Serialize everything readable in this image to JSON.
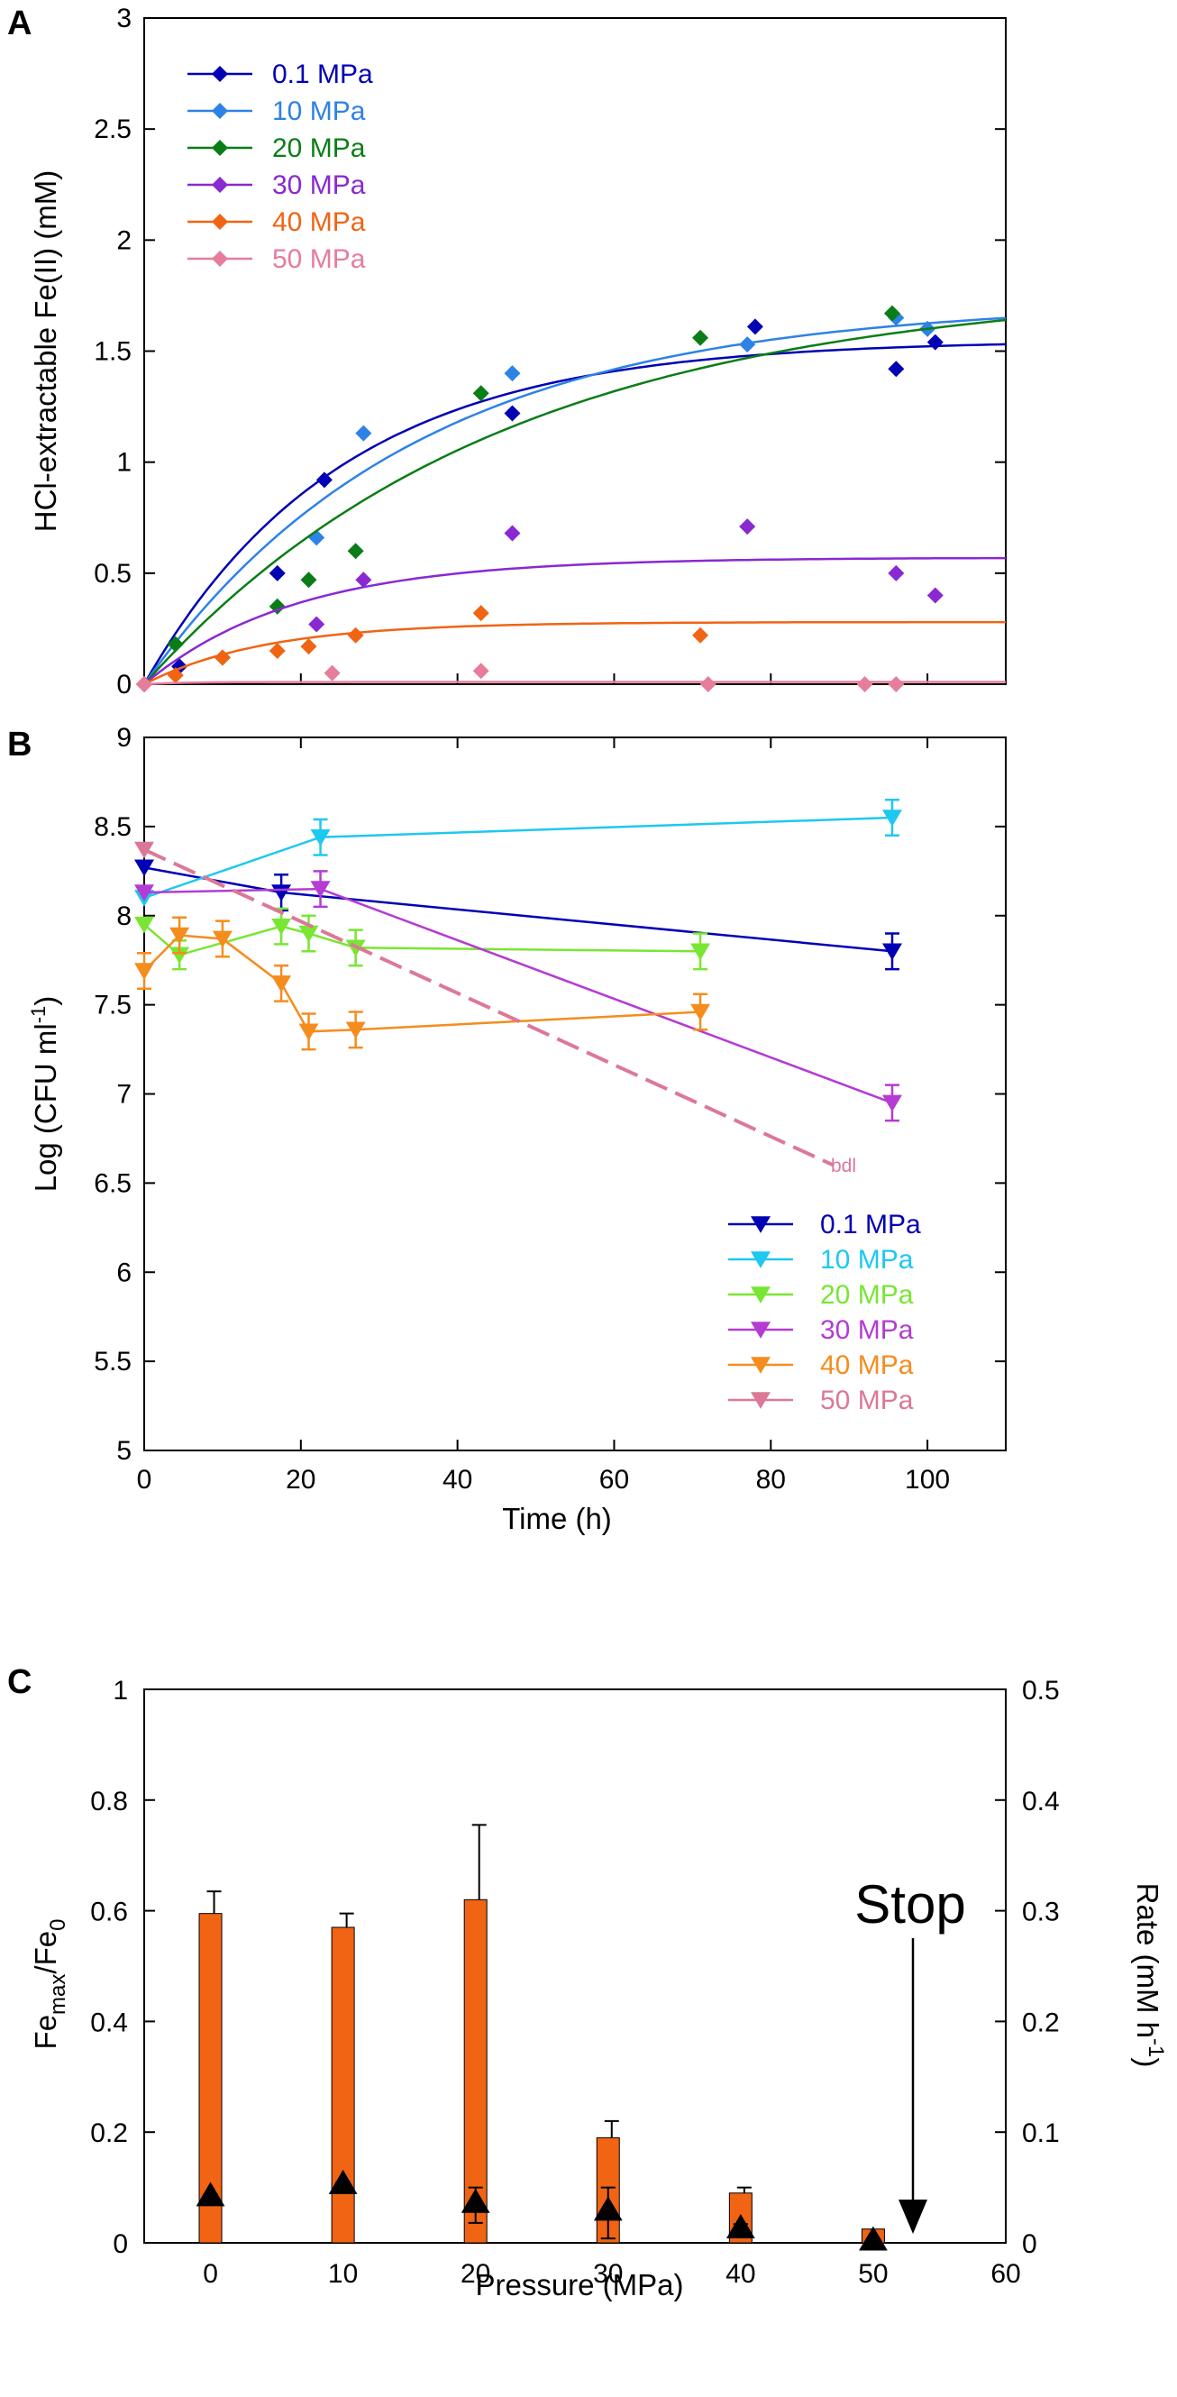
{
  "chart_data": [
    {
      "panel": "A",
      "type": "scatter",
      "ylabel": "HCl-extractable Fe(II) (mM)",
      "xlim": [
        0,
        110
      ],
      "ylim": [
        0,
        3
      ],
      "yticks": [
        "0",
        "0.5",
        "1",
        "1.5",
        "2",
        "2.5",
        "3"
      ],
      "legend_position": "top-left",
      "series": [
        {
          "name": "0.1 MPa",
          "color": "#0000b4",
          "points": [
            [
              0,
              0
            ],
            [
              4.5,
              0.08
            ],
            [
              17,
              0.5
            ],
            [
              23,
              0.92
            ],
            [
              47,
              1.22
            ],
            [
              78,
              1.61
            ],
            [
              96,
              1.42
            ],
            [
              101,
              1.54
            ]
          ],
          "fit": {
            "Fmax": 1.55,
            "k": 0.04
          }
        },
        {
          "name": "10 MPa",
          "color": "#2d82e6",
          "points": [
            [
              0,
              0
            ],
            [
              22,
              0.66
            ],
            [
              28,
              1.13
            ],
            [
              47,
              1.4
            ],
            [
              77,
              1.53
            ],
            [
              96,
              1.65
            ],
            [
              100,
              1.6
            ]
          ],
          "fit": {
            "Fmax": 1.72,
            "k": 0.029
          }
        },
        {
          "name": "20 MPa",
          "color": "#0b7d17",
          "points": [
            [
              0,
              0
            ],
            [
              4,
              0.18
            ],
            [
              10,
              0.12
            ],
            [
              17,
              0.35
            ],
            [
              21,
              0.47
            ],
            [
              27,
              0.6
            ],
            [
              43,
              1.31
            ],
            [
              71,
              1.56
            ],
            [
              95.5,
              1.67
            ]
          ],
          "fit": {
            "Fmax": 1.8,
            "k": 0.022
          }
        },
        {
          "name": "30 MPa",
          "color": "#8a28d2",
          "points": [
            [
              0,
              0
            ],
            [
              22,
              0.27
            ],
            [
              28,
              0.47
            ],
            [
              47,
              0.68
            ],
            [
              77,
              0.71
            ],
            [
              96,
              0.5
            ],
            [
              101,
              0.4
            ]
          ],
          "fit": {
            "Fmax": 0.57,
            "k": 0.052
          }
        },
        {
          "name": "40 MPa",
          "color": "#f06414",
          "points": [
            [
              0,
              0
            ],
            [
              4,
              0.04
            ],
            [
              10,
              0.12
            ],
            [
              17,
              0.15
            ],
            [
              21,
              0.17
            ],
            [
              27,
              0.22
            ],
            [
              43,
              0.32
            ],
            [
              71,
              0.22
            ]
          ],
          "fit": {
            "Fmax": 0.28,
            "k": 0.065
          }
        },
        {
          "name": "50 MPa",
          "color": "#e67d9b",
          "points": [
            [
              0,
              0
            ],
            [
              24,
              0.05
            ],
            [
              43,
              0.06
            ],
            [
              72,
              0
            ],
            [
              92,
              0
            ],
            [
              96,
              0
            ]
          ],
          "fit": {
            "Fmax": 0.01,
            "k": 0.2
          }
        }
      ]
    },
    {
      "panel": "B",
      "type": "line",
      "ylabel": "Log (CFU ml",
      "ylabel_sup": "-1",
      "ylabel_close": ")",
      "xlabel": "Time (h)",
      "xlim": [
        0,
        110
      ],
      "ylim": [
        5,
        9
      ],
      "xticks": [
        "0",
        "20",
        "40",
        "60",
        "80",
        "100"
      ],
      "yticks": [
        "5",
        "5.5",
        "6",
        "6.5",
        "7",
        "7.5",
        "8",
        "8.5",
        "9"
      ],
      "legend_position": "bottom-right",
      "annotation": "bdl",
      "series": [
        {
          "name": "0.1 MPa",
          "color": "#0000b4",
          "x": [
            0,
            17.5,
            95.5
          ],
          "y": [
            8.27,
            8.13,
            7.8
          ],
          "err": [
            0,
            0.1,
            0.1
          ]
        },
        {
          "name": "10 MPa",
          "color": "#1ec8f0",
          "x": [
            0,
            22.5,
            95.5
          ],
          "y": [
            8.1,
            8.44,
            8.55
          ],
          "err": [
            0,
            0.1,
            0.1
          ]
        },
        {
          "name": "20 MPa",
          "color": "#78e632",
          "x": [
            0,
            4.5,
            17.5,
            21,
            27,
            71
          ],
          "y": [
            7.95,
            7.78,
            7.94,
            7.9,
            7.82,
            7.8
          ],
          "err": [
            0,
            0.08,
            0.1,
            0.1,
            0.1,
            0.1
          ]
        },
        {
          "name": "30 MPa",
          "color": "#b43cd2",
          "x": [
            0,
            22.5,
            95.5
          ],
          "y": [
            8.13,
            8.15,
            6.95
          ],
          "err": [
            0,
            0.1,
            0.1
          ]
        },
        {
          "name": "40 MPa",
          "color": "#f58c1e",
          "x": [
            0,
            4.5,
            10,
            17.5,
            21,
            27,
            71
          ],
          "y": [
            7.69,
            7.89,
            7.87,
            7.62,
            7.35,
            7.36,
            7.46
          ],
          "err": [
            0.1,
            0.1,
            0.1,
            0.1,
            0.1,
            0.1,
            0.1
          ]
        },
        {
          "name": "50 MPa",
          "color": "#dc7896",
          "x": [
            0,
            88
          ],
          "y": [
            8.37,
            6.6
          ],
          "err": [
            0,
            0
          ]
        }
      ]
    },
    {
      "panel": "C",
      "type": "bar",
      "xlabel": "Pressure (MPa)",
      "ylabel_left": "Fe",
      "ylabel_left_sub1": "max",
      "ylabel_left_mid": "/Fe",
      "ylabel_left_sub2": "0",
      "ylabel_right": "Rate (mM h",
      "ylabel_right_sup": "-1",
      "ylabel_right_close": ")",
      "xlim": [
        -5,
        60
      ],
      "ylim_left": [
        0,
        1
      ],
      "ylim_right": [
        0,
        0.5
      ],
      "xticks": [
        "0",
        "10",
        "20",
        "30",
        "40",
        "50",
        "60"
      ],
      "yticks_left": [
        "0",
        "0.2",
        "0.4",
        "0.6",
        "0.8",
        "1"
      ],
      "yticks_right": [
        "0",
        "0.1",
        "0.2",
        "0.3",
        "0.4",
        "0.5"
      ],
      "bar_color": "#f06414",
      "categories": [
        0,
        10,
        20,
        30,
        40,
        50
      ],
      "bars": {
        "name": "Fe_max/Fe_0",
        "values": [
          0.595,
          0.57,
          0.62,
          0.19,
          0.09,
          0.025
        ],
        "err": [
          0.04,
          0.025,
          0.135,
          0.03,
          0.01,
          0
        ]
      },
      "triangles": {
        "name": "Rate",
        "values": [
          0.04,
          0.051,
          0.034,
          0.027,
          0.011,
          0.0
        ],
        "err": [
          0.004,
          0.004,
          0.016,
          0.023,
          0.006,
          0
        ]
      },
      "annotation": "Stop"
    }
  ]
}
